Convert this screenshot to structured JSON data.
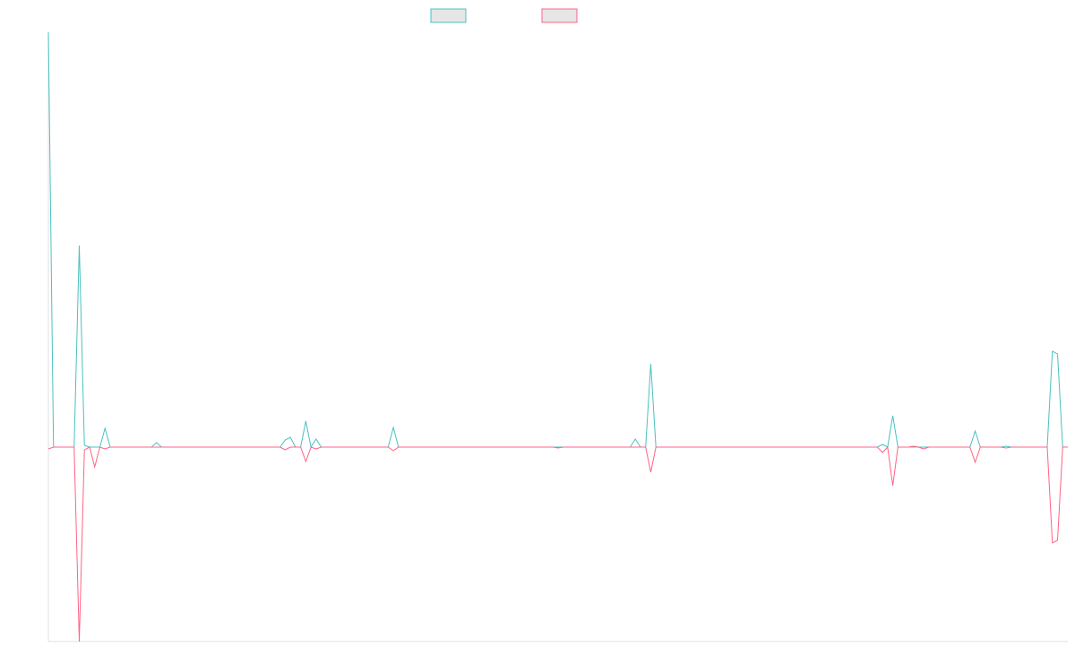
{
  "chart_data": {
    "type": "line",
    "ylim": [
      -217,
      463
    ],
    "series": [
      {
        "color": "#4bc0c0",
        "values": [
          463,
          0,
          0,
          0,
          0,
          0,
          225,
          2,
          0,
          0,
          0,
          21,
          0,
          0,
          0,
          0,
          0,
          0,
          0,
          0,
          0,
          5,
          0,
          0,
          0,
          0,
          0,
          0,
          0,
          0,
          0,
          0,
          0,
          0,
          0,
          0,
          0,
          0,
          0,
          0,
          0,
          0,
          0,
          0,
          0,
          0,
          8,
          11,
          0,
          0,
          29,
          0,
          9,
          0,
          0,
          0,
          0,
          0,
          0,
          0,
          0,
          0,
          0,
          0,
          0,
          0,
          0,
          22,
          0,
          0,
          0,
          0,
          0,
          0,
          0,
          0,
          0,
          0,
          0,
          0,
          0,
          0,
          0,
          0,
          0,
          0,
          0,
          0,
          0,
          0,
          0,
          0,
          0,
          0,
          0,
          0,
          0,
          0,
          0,
          0,
          0,
          0,
          0,
          0,
          0,
          0,
          0,
          0,
          0,
          0,
          0,
          0,
          0,
          0,
          9,
          0,
          0,
          93,
          0,
          0,
          0,
          0,
          0,
          0,
          0,
          0,
          0,
          0,
          0,
          0,
          0,
          0,
          0,
          0,
          0,
          0,
          0,
          0,
          0,
          0,
          0,
          0,
          0,
          0,
          0,
          0,
          0,
          0,
          0,
          0,
          0,
          0,
          0,
          0,
          0,
          0,
          0,
          0,
          0,
          0,
          0,
          0,
          3,
          0,
          35,
          0,
          0,
          0,
          0,
          0,
          0,
          0,
          0,
          0,
          0,
          0,
          0,
          0,
          0,
          0,
          18,
          0,
          0,
          0,
          0,
          0,
          1,
          0,
          0,
          0,
          0,
          0,
          0,
          0,
          0,
          107,
          104,
          0,
          0
        ]
      },
      {
        "color": "#ff6384",
        "values": [
          -2,
          0,
          0,
          0,
          0,
          0,
          -217,
          -3,
          0,
          -22,
          0,
          -2,
          0,
          0,
          0,
          0,
          0,
          0,
          0,
          0,
          0,
          0,
          0,
          0,
          0,
          0,
          0,
          0,
          0,
          0,
          0,
          0,
          0,
          0,
          0,
          0,
          0,
          0,
          0,
          0,
          0,
          0,
          0,
          0,
          0,
          0,
          -3,
          0,
          0,
          0,
          -16,
          0,
          -2,
          0,
          0,
          0,
          0,
          0,
          0,
          0,
          0,
          0,
          0,
          0,
          0,
          0,
          0,
          -4,
          0,
          0,
          0,
          0,
          0,
          0,
          0,
          0,
          0,
          0,
          0,
          0,
          0,
          0,
          0,
          0,
          0,
          0,
          0,
          0,
          0,
          0,
          0,
          0,
          0,
          0,
          0,
          0,
          0,
          0,
          0,
          -1,
          0,
          0,
          0,
          0,
          0,
          0,
          0,
          0,
          0,
          0,
          0,
          0,
          0,
          0,
          0,
          0,
          0,
          -28,
          0,
          0,
          0,
          0,
          0,
          0,
          0,
          0,
          0,
          0,
          0,
          0,
          0,
          0,
          0,
          0,
          0,
          0,
          0,
          0,
          0,
          0,
          0,
          0,
          0,
          0,
          0,
          0,
          0,
          0,
          0,
          0,
          0,
          0,
          0,
          0,
          0,
          0,
          0,
          0,
          0,
          0,
          0,
          0,
          -6,
          0,
          -43,
          0,
          0,
          0,
          1,
          0,
          -2,
          0,
          0,
          0,
          0,
          0,
          0,
          0,
          0,
          0,
          -17,
          0,
          0,
          0,
          0,
          0,
          -1,
          0,
          0,
          0,
          0,
          0,
          0,
          0,
          0,
          -107,
          -104,
          0,
          0
        ]
      }
    ]
  }
}
